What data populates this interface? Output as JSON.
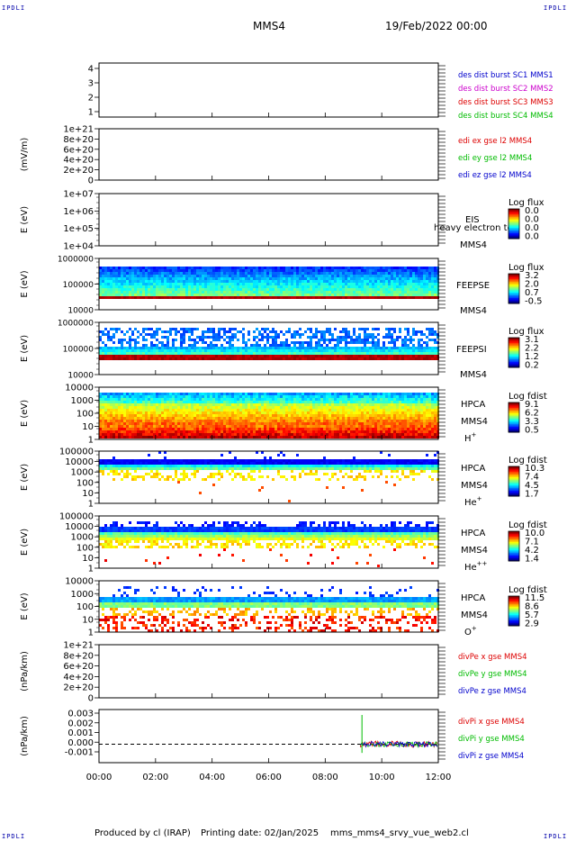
{
  "corner_label": "IPDLI",
  "header": {
    "spacecraft": "MMS4",
    "date": "19/Feb/2022 00:00"
  },
  "footer": {
    "produced_by": "Produced by cl (IRAP)",
    "printing_date": "Printing date: 02/Jan/2025",
    "file": "mms_mms4_srvy_vue_web2.cl"
  },
  "chart_data": {
    "type": "multi-panel time series",
    "x_ticks": [
      "00:00",
      "02:00",
      "04:00",
      "06:00",
      "08:00",
      "10:00",
      "12:00"
    ],
    "x_range_hours": [
      0,
      12
    ],
    "panels": [
      {
        "id": "burst",
        "type": "line",
        "ylabel": "",
        "y_ticks": [
          "4",
          "3",
          "2",
          "1"
        ],
        "ylim": [
          0.6,
          4.4
        ],
        "legend": [
          {
            "label": "des dist burst SC1 MMS1",
            "color": "#0000cc"
          },
          {
            "label": "des dist burst SC2 MMS2",
            "color": "#cc00cc"
          },
          {
            "label": "des dist burst SC3 MMS3",
            "color": "#dd0000"
          },
          {
            "label": "des dist burst SC4 MMS4",
            "color": "#00bb00"
          }
        ]
      },
      {
        "id": "efield",
        "type": "line",
        "ylabel": "(mV/m)",
        "y_ticks": [
          "1e+21",
          "8e+20",
          "6e+20",
          "4e+20",
          "2e+20",
          "0"
        ],
        "ylim": [
          0,
          1e+21
        ],
        "zero_line": true,
        "legend": [
          {
            "label": "edi ex gse l2 MMS4",
            "color": "#dd0000"
          },
          {
            "label": "edi ey gse l2 MMS4",
            "color": "#00bb00"
          },
          {
            "label": "edi ez gse l2 MMS4",
            "color": "#0000cc"
          }
        ]
      },
      {
        "id": "eis",
        "type": "heatmap",
        "ylabel": "E (eV)",
        "y_ticks": [
          "1e+07",
          "1e+06",
          "1e+05",
          "1e+04"
        ],
        "ylim": [
          10000.0,
          10000000.0
        ],
        "log_y": true,
        "instrument": "EIS",
        "spacecraft": "MMS4",
        "overlay_text": "heavy electron to",
        "colorbar": {
          "title": "Log flux",
          "ticks": [
            "0.0",
            "0.0",
            "0.0",
            "0.0"
          ]
        },
        "fill": "empty"
      },
      {
        "id": "feepse",
        "type": "heatmap",
        "ylabel": "E (eV)",
        "y_ticks": [
          "1000000",
          "100000",
          "10000"
        ],
        "ylim": [
          10000,
          1000000
        ],
        "log_y": true,
        "instrument": "FEEPSE",
        "spacecraft": "MMS4",
        "colorbar": {
          "title": "Log flux",
          "ticks": [
            "3.2",
            "2.0",
            "0.7",
            "-0.5"
          ]
        },
        "fill": "electron"
      },
      {
        "id": "feepsi",
        "type": "heatmap",
        "ylabel": "E (eV)",
        "y_ticks": [
          "1000000",
          "100000",
          "10000"
        ],
        "ylim": [
          10000,
          1000000
        ],
        "log_y": true,
        "instrument": "FEEPSI",
        "spacecraft": "MMS4",
        "colorbar": {
          "title": "Log flux",
          "ticks": [
            "3.1",
            "2.2",
            "1.2",
            "0.2"
          ]
        },
        "fill": "ion"
      },
      {
        "id": "hpca_h",
        "type": "heatmap",
        "ylabel": "E (eV)",
        "y_ticks": [
          "10000",
          "1000",
          "100",
          "10",
          "1"
        ],
        "ylim": [
          1,
          40000
        ],
        "log_y": true,
        "instrument": "HPCA",
        "spacecraft": "MMS4",
        "species": "H",
        "charge": "+",
        "colorbar": {
          "title": "Log fdist",
          "ticks": [
            "9.1",
            "6.2",
            "3.3",
            "0.5"
          ]
        },
        "fill": "hplus"
      },
      {
        "id": "hpca_he1",
        "type": "heatmap",
        "ylabel": "E (eV)",
        "y_ticks": [
          "100000",
          "10000",
          "1000",
          "100",
          "10",
          "1"
        ],
        "ylim": [
          1,
          100000
        ],
        "log_y": true,
        "instrument": "HPCA",
        "spacecraft": "MMS4",
        "species": "He",
        "charge": "+",
        "colorbar": {
          "title": "Log fdist",
          "ticks": [
            "10.3",
            "7.4",
            "4.5",
            "1.7"
          ]
        },
        "fill": "heplus"
      },
      {
        "id": "hpca_he2",
        "type": "heatmap",
        "ylabel": "E (eV)",
        "y_ticks": [
          "100000",
          "10000",
          "1000",
          "100",
          "10",
          "1"
        ],
        "ylim": [
          1,
          100000
        ],
        "log_y": true,
        "instrument": "HPCA",
        "spacecraft": "MMS4",
        "species": "He",
        "charge": "++",
        "colorbar": {
          "title": "Log fdist",
          "ticks": [
            "10.0",
            "7.1",
            "4.2",
            "1.4"
          ]
        },
        "fill": "heplusplus"
      },
      {
        "id": "hpca_o",
        "type": "heatmap",
        "ylabel": "E (eV)",
        "y_ticks": [
          "10000",
          "1000",
          "100",
          "10",
          "1"
        ],
        "ylim": [
          1,
          40000
        ],
        "log_y": true,
        "instrument": "HPCA",
        "spacecraft": "MMS4",
        "species": "O",
        "charge": "+",
        "colorbar": {
          "title": "Log fdist",
          "ticks": [
            "11.5",
            "8.6",
            "5.7",
            "2.9"
          ]
        },
        "fill": "oplus"
      },
      {
        "id": "divpe",
        "type": "line",
        "ylabel": "(nPa/km)",
        "y_ticks": [
          "1e+21",
          "8e+20",
          "6e+20",
          "4e+20",
          "2e+20",
          "0"
        ],
        "ylim": [
          0,
          1e+21
        ],
        "zero_line": true,
        "legend": [
          {
            "label": "divPe x gse MMS4",
            "color": "#dd0000"
          },
          {
            "label": "divPe y gse MMS4",
            "color": "#00bb00"
          },
          {
            "label": "divPe z gse MMS4",
            "color": "#0000cc"
          }
        ]
      },
      {
        "id": "divpi",
        "type": "line",
        "ylabel": "(nPa/km)",
        "y_ticks": [
          "0.003",
          "0.002",
          "0.001",
          "0.000",
          "-0.001"
        ],
        "ylim": [
          -0.0017,
          0.0032
        ],
        "zero_line": true,
        "data_start_hour": 9.25,
        "spike": {
          "hour": 9.3,
          "max": 0.0027,
          "min": -0.0008
        },
        "noise_amplitude": 0.0003,
        "legend": [
          {
            "label": "divPi x gse MMS4",
            "color": "#dd0000"
          },
          {
            "label": "divPi y gse MMS4",
            "color": "#00bb00"
          },
          {
            "label": "divPi z gse MMS4",
            "color": "#0000cc"
          }
        ]
      }
    ]
  }
}
